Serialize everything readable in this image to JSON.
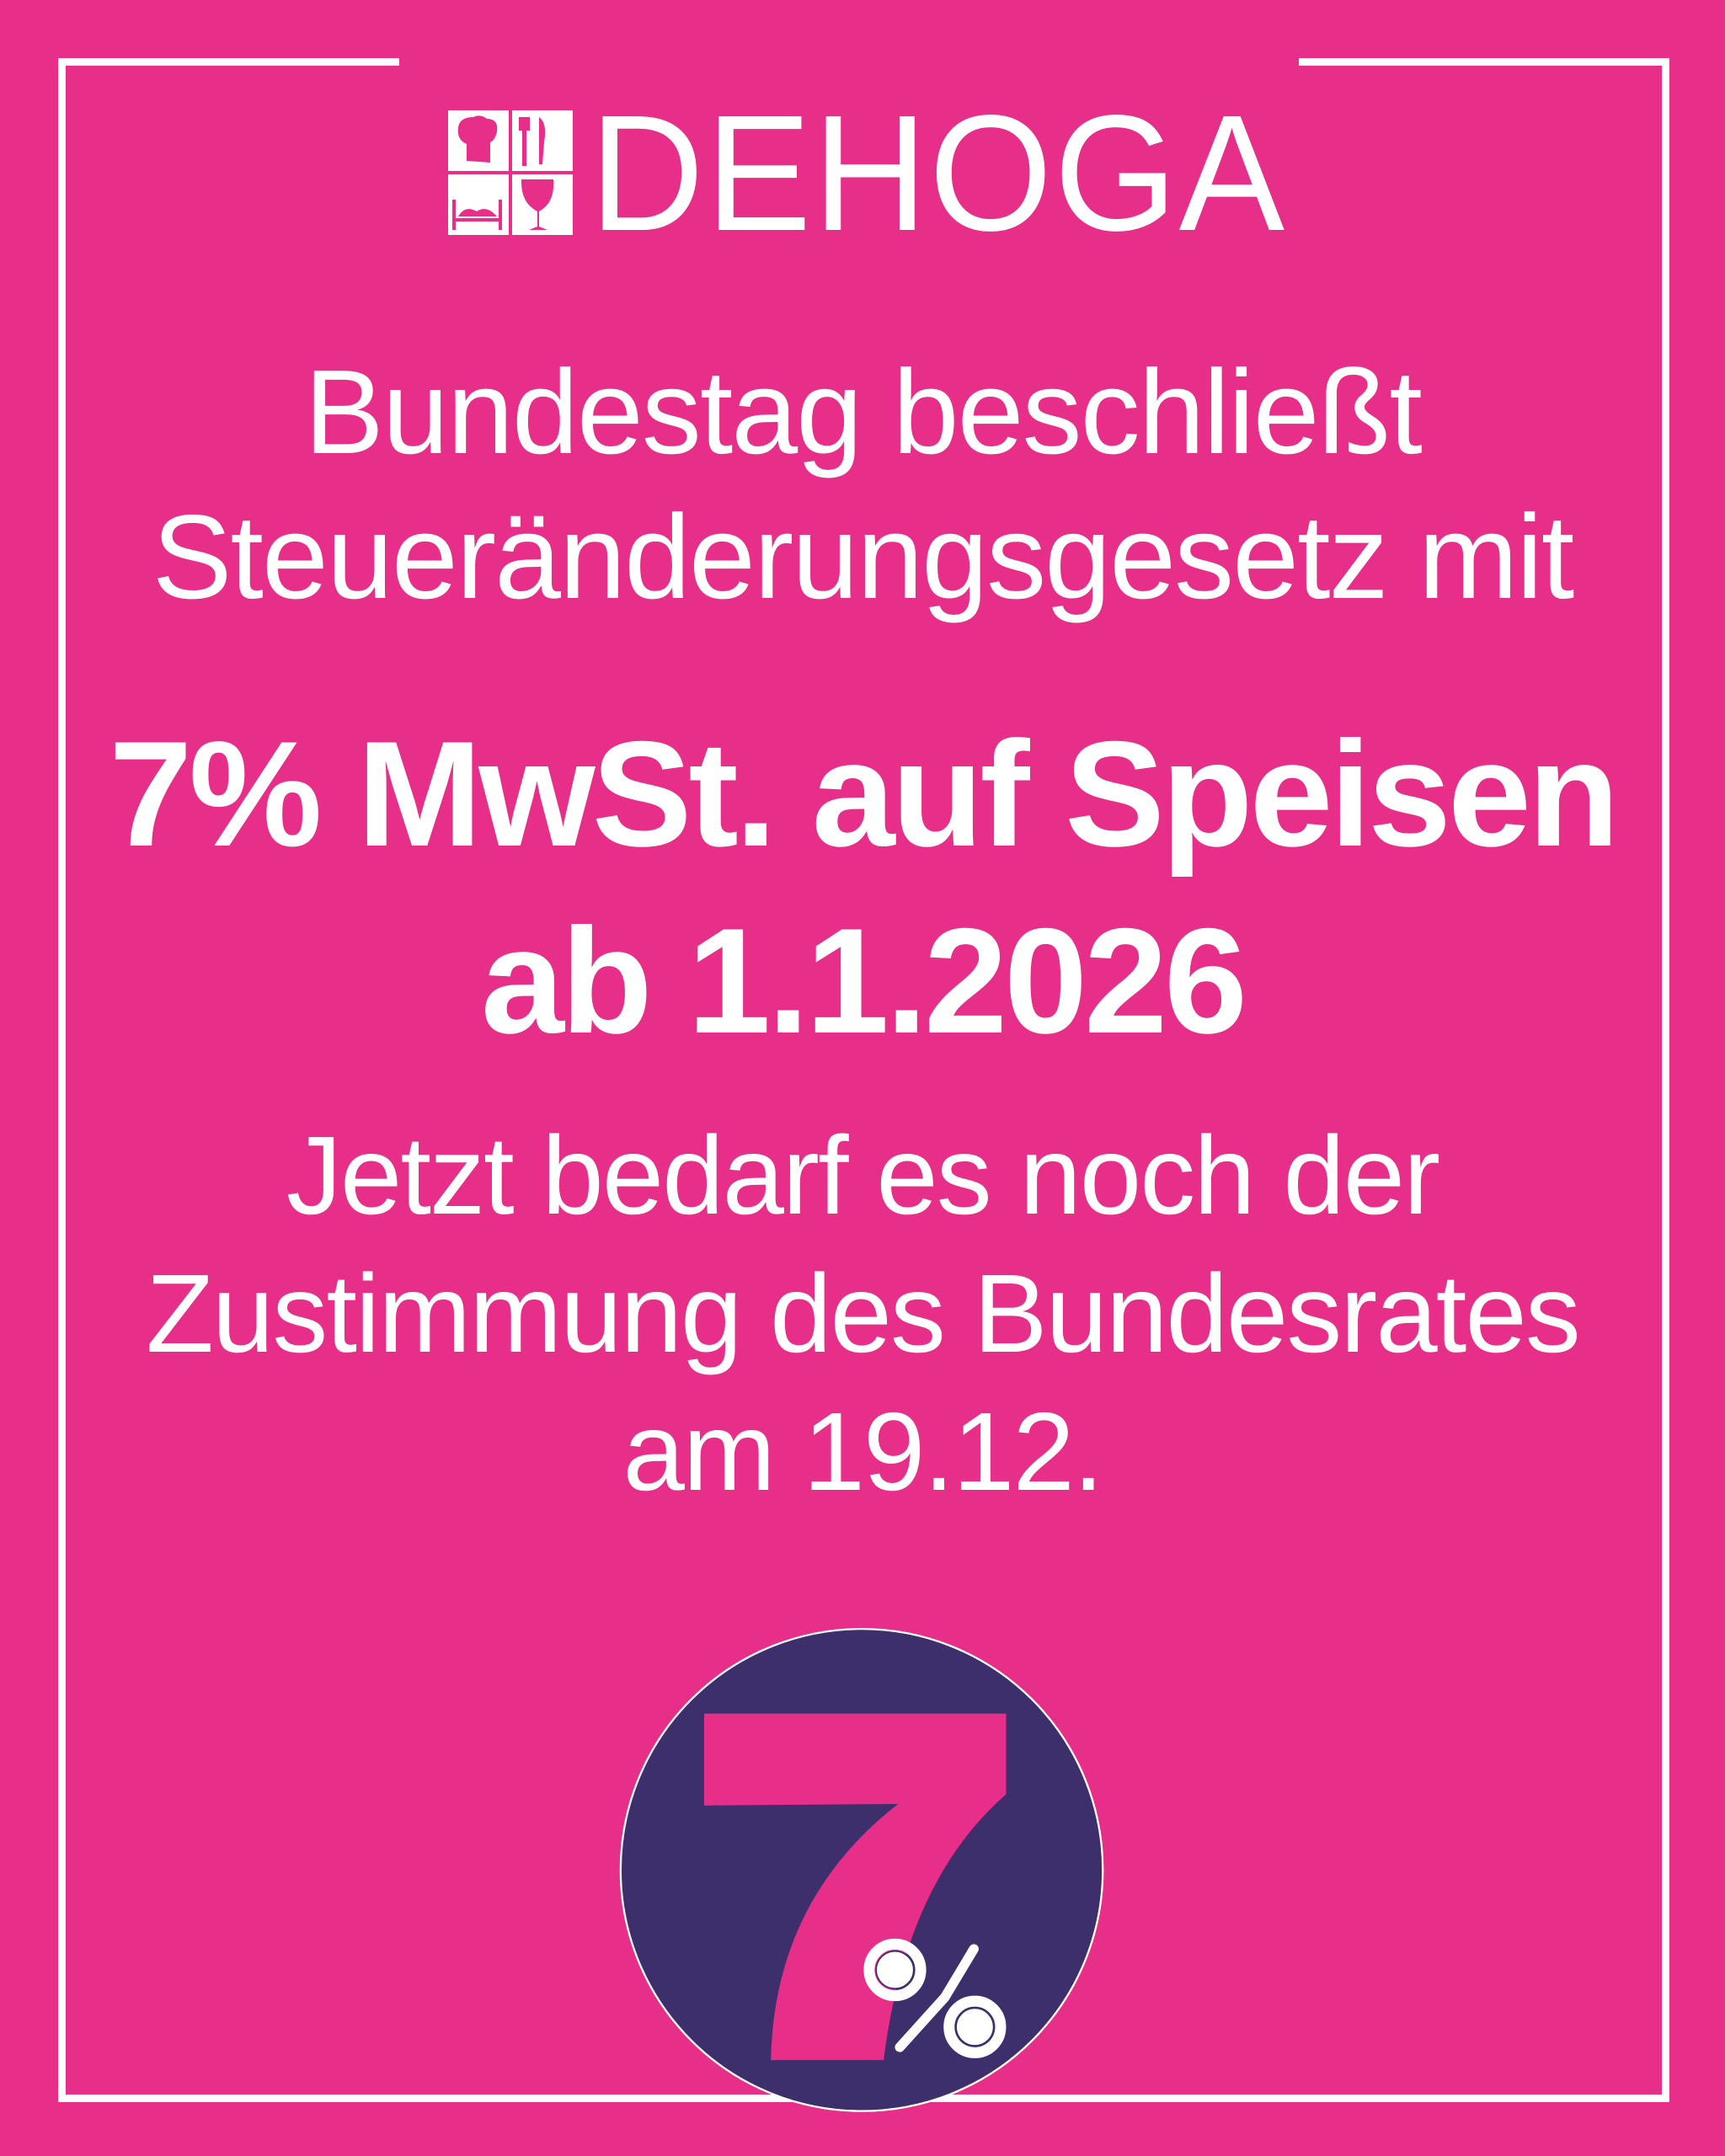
{
  "brand": {
    "name": "DEHOGA",
    "icons": [
      "chef-hat-icon",
      "cutlery-icon",
      "bed-icon",
      "wine-glass-icon"
    ]
  },
  "headline": {
    "line1": "Bundestag beschließt",
    "line2": "Steueränderungsgesetz mit"
  },
  "highlight": {
    "line1": "7% MwSt. auf Speisen",
    "line2": "ab 1.1.2026"
  },
  "note": {
    "line1": "Jetzt bedarf es noch der",
    "line2": "Zustimmung des Bundesrates",
    "line3": "am 19.12."
  },
  "badge": {
    "number": "7",
    "symbol": "%"
  },
  "colors": {
    "background": "#E72E89",
    "badge": "#3D2F6B",
    "text": "#FFFFFF"
  }
}
